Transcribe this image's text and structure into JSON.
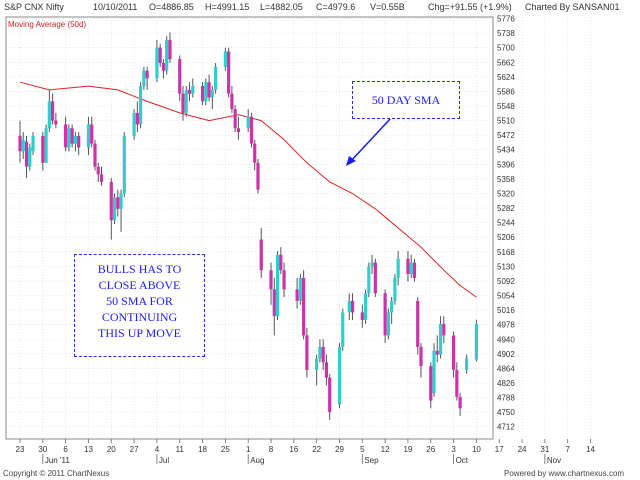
{
  "header": {
    "symbol": "S&P CNX Nifty",
    "date": "10/10/2011",
    "open": "O=4886.85",
    "high": "H=4991.15",
    "low": "L=4882.05",
    "close": "C=4979.6",
    "volume": "V=0.55B",
    "change": "Chg=+91.55 (+1.9%)",
    "charted_by": "Charted By SANSAN01"
  },
  "indicator_label": "Moving Average (50d)",
  "annotations": {
    "sma": "50 DAY SMA",
    "bulls": [
      "BULLS HAS TO",
      "CLOSE ABOVE",
      "50 SMA FOR",
      "CONTINUING",
      "THIS UP MOVE"
    ]
  },
  "footer": {
    "copyright": "Copyright © 2011 ChartNexus",
    "powered": "Powered by www.chartnexus.com"
  },
  "colors": {
    "up": "#33cccc",
    "down": "#cc33aa",
    "sma": "#dd2222",
    "annotation": "#1a1aff",
    "grid": "#d8d8d8"
  },
  "chart_data": {
    "type": "candlestick",
    "ylim": [
      4680,
      5780
    ],
    "y_ticks": [
      5776,
      5738,
      5700,
      5662,
      5624,
      5586,
      5548,
      5510,
      5472,
      5434,
      5396,
      5358,
      5320,
      5282,
      5244,
      5206,
      5168,
      5130,
      5092,
      5054,
      5016,
      4978,
      4940,
      4902,
      4864,
      4826,
      4788,
      4750,
      4712
    ],
    "x_tick_labels": [
      "23",
      "30",
      "6",
      "13",
      "20",
      "27",
      "4",
      "11",
      "18",
      "25",
      "1",
      "8",
      "16",
      "22",
      "29",
      "5",
      "12",
      "19",
      "26",
      "3",
      "10",
      "17",
      "24",
      "31",
      "7",
      "14"
    ],
    "month_labels": [
      {
        "label": "Jun '11",
        "at": "30"
      },
      {
        "label": "Jul",
        "at": "4"
      },
      {
        "label": "Aug",
        "at": "1"
      },
      {
        "label": "Sep",
        "at": "5"
      },
      {
        "label": "Oct",
        "at": "3"
      },
      {
        "label": "Nov",
        "at": "31"
      }
    ],
    "candles": [
      {
        "d": "2011-05-23",
        "o": 5470,
        "h": 5510,
        "l": 5400,
        "c": 5430
      },
      {
        "d": "2011-05-24",
        "o": 5430,
        "h": 5480,
        "l": 5410,
        "c": 5460
      },
      {
        "d": "2011-05-25",
        "o": 5455,
        "h": 5470,
        "l": 5360,
        "c": 5390
      },
      {
        "d": "2011-05-26",
        "o": 5390,
        "h": 5450,
        "l": 5380,
        "c": 5440
      },
      {
        "d": "2011-05-27",
        "o": 5430,
        "h": 5480,
        "l": 5420,
        "c": 5470
      },
      {
        "d": "2011-05-30",
        "o": 5470,
        "h": 5480,
        "l": 5380,
        "c": 5400
      },
      {
        "d": "2011-05-31",
        "o": 5400,
        "h": 5500,
        "l": 5400,
        "c": 5490
      },
      {
        "d": "2011-06-01",
        "o": 5490,
        "h": 5590,
        "l": 5480,
        "c": 5560
      },
      {
        "d": "2011-06-02",
        "o": 5560,
        "h": 5580,
        "l": 5500,
        "c": 5510
      },
      {
        "d": "2011-06-03",
        "o": 5510,
        "h": 5530,
        "l": 5490,
        "c": 5500
      },
      {
        "d": "2011-06-06",
        "o": 5500,
        "h": 5520,
        "l": 5430,
        "c": 5440
      },
      {
        "d": "2011-06-07",
        "o": 5440,
        "h": 5500,
        "l": 5430,
        "c": 5490
      },
      {
        "d": "2011-06-08",
        "o": 5490,
        "h": 5500,
        "l": 5440,
        "c": 5450
      },
      {
        "d": "2011-06-09",
        "o": 5450,
        "h": 5480,
        "l": 5430,
        "c": 5470
      },
      {
        "d": "2011-06-10",
        "o": 5470,
        "h": 5480,
        "l": 5420,
        "c": 5440
      },
      {
        "d": "2011-06-13",
        "o": 5440,
        "h": 5520,
        "l": 5420,
        "c": 5500
      },
      {
        "d": "2011-06-14",
        "o": 5500,
        "h": 5520,
        "l": 5440,
        "c": 5450
      },
      {
        "d": "2011-06-15",
        "o": 5450,
        "h": 5460,
        "l": 5380,
        "c": 5390
      },
      {
        "d": "2011-06-16",
        "o": 5390,
        "h": 5400,
        "l": 5350,
        "c": 5370
      },
      {
        "d": "2011-06-17",
        "o": 5370,
        "h": 5390,
        "l": 5340,
        "c": 5350
      },
      {
        "d": "2011-06-20",
        "o": 5350,
        "h": 5360,
        "l": 5200,
        "c": 5250
      },
      {
        "d": "2011-06-21",
        "o": 5250,
        "h": 5320,
        "l": 5240,
        "c": 5310
      },
      {
        "d": "2011-06-22",
        "o": 5310,
        "h": 5330,
        "l": 5260,
        "c": 5280
      },
      {
        "d": "2011-06-23",
        "o": 5280,
        "h": 5330,
        "l": 5220,
        "c": 5320
      },
      {
        "d": "2011-06-24",
        "o": 5320,
        "h": 5480,
        "l": 5310,
        "c": 5470
      },
      {
        "d": "2011-06-27",
        "o": 5470,
        "h": 5540,
        "l": 5460,
        "c": 5530
      },
      {
        "d": "2011-06-28",
        "o": 5530,
        "h": 5560,
        "l": 5480,
        "c": 5500
      },
      {
        "d": "2011-06-29",
        "o": 5500,
        "h": 5610,
        "l": 5490,
        "c": 5600
      },
      {
        "d": "2011-06-30",
        "o": 5600,
        "h": 5650,
        "l": 5590,
        "c": 5640
      },
      {
        "d": "2011-07-01",
        "o": 5640,
        "h": 5650,
        "l": 5590,
        "c": 5620
      },
      {
        "d": "2011-07-04",
        "o": 5620,
        "h": 5720,
        "l": 5610,
        "c": 5700
      },
      {
        "d": "2011-07-05",
        "o": 5700,
        "h": 5710,
        "l": 5650,
        "c": 5660
      },
      {
        "d": "2011-07-06",
        "o": 5660,
        "h": 5670,
        "l": 5620,
        "c": 5640
      },
      {
        "d": "2011-07-07",
        "o": 5640,
        "h": 5730,
        "l": 5630,
        "c": 5720
      },
      {
        "d": "2011-07-08",
        "o": 5720,
        "h": 5740,
        "l": 5660,
        "c": 5670
      },
      {
        "d": "2011-07-11",
        "o": 5670,
        "h": 5680,
        "l": 5560,
        "c": 5580
      },
      {
        "d": "2011-07-12",
        "o": 5580,
        "h": 5600,
        "l": 5510,
        "c": 5530
      },
      {
        "d": "2011-07-13",
        "o": 5530,
        "h": 5600,
        "l": 5520,
        "c": 5590
      },
      {
        "d": "2011-07-14",
        "o": 5590,
        "h": 5610,
        "l": 5560,
        "c": 5580
      },
      {
        "d": "2011-07-15",
        "o": 5580,
        "h": 5620,
        "l": 5570,
        "c": 5600
      },
      {
        "d": "2011-07-18",
        "o": 5600,
        "h": 5610,
        "l": 5550,
        "c": 5560
      },
      {
        "d": "2011-07-19",
        "o": 5560,
        "h": 5620,
        "l": 5550,
        "c": 5610
      },
      {
        "d": "2011-07-20",
        "o": 5610,
        "h": 5630,
        "l": 5560,
        "c": 5570
      },
      {
        "d": "2011-07-21",
        "o": 5570,
        "h": 5600,
        "l": 5540,
        "c": 5590
      },
      {
        "d": "2011-07-22",
        "o": 5590,
        "h": 5660,
        "l": 5580,
        "c": 5650
      },
      {
        "d": "2011-07-25",
        "o": 5650,
        "h": 5700,
        "l": 5640,
        "c": 5690
      },
      {
        "d": "2011-07-26",
        "o": 5690,
        "h": 5700,
        "l": 5570,
        "c": 5580
      },
      {
        "d": "2011-07-27",
        "o": 5580,
        "h": 5600,
        "l": 5530,
        "c": 5540
      },
      {
        "d": "2011-07-28",
        "o": 5540,
        "h": 5550,
        "l": 5480,
        "c": 5490
      },
      {
        "d": "2011-07-29",
        "o": 5490,
        "h": 5520,
        "l": 5460,
        "c": 5480
      },
      {
        "d": "2011-08-01",
        "o": 5490,
        "h": 5540,
        "l": 5480,
        "c": 5520
      },
      {
        "d": "2011-08-02",
        "o": 5520,
        "h": 5530,
        "l": 5440,
        "c": 5450
      },
      {
        "d": "2011-08-03",
        "o": 5450,
        "h": 5460,
        "l": 5380,
        "c": 5400
      },
      {
        "d": "2011-08-04",
        "o": 5400,
        "h": 5410,
        "l": 5320,
        "c": 5330
      },
      {
        "d": "2011-08-05",
        "o": 5200,
        "h": 5230,
        "l": 5100,
        "c": 5120
      },
      {
        "d": "2011-08-08",
        "o": 5120,
        "h": 5140,
        "l": 5030,
        "c": 5070
      },
      {
        "d": "2011-08-09",
        "o": 5070,
        "h": 5100,
        "l": 4950,
        "c": 5000
      },
      {
        "d": "2011-08-10",
        "o": 5000,
        "h": 5170,
        "l": 4990,
        "c": 5160
      },
      {
        "d": "2011-08-11",
        "o": 5160,
        "h": 5180,
        "l": 5110,
        "c": 5120
      },
      {
        "d": "2011-08-12",
        "o": 5120,
        "h": 5140,
        "l": 5050,
        "c": 5070
      },
      {
        "d": "2011-08-16",
        "o": 5070,
        "h": 5100,
        "l": 5020,
        "c": 5040
      },
      {
        "d": "2011-08-17",
        "o": 5040,
        "h": 5110,
        "l": 5030,
        "c": 5100
      },
      {
        "d": "2011-08-18",
        "o": 5100,
        "h": 5120,
        "l": 4940,
        "c": 4950
      },
      {
        "d": "2011-08-19",
        "o": 4950,
        "h": 4970,
        "l": 4840,
        "c": 4860
      },
      {
        "d": "2011-08-22",
        "o": 4860,
        "h": 4900,
        "l": 4820,
        "c": 4890
      },
      {
        "d": "2011-08-23",
        "o": 4890,
        "h": 4940,
        "l": 4880,
        "c": 4920
      },
      {
        "d": "2011-08-24",
        "o": 4920,
        "h": 4940,
        "l": 4860,
        "c": 4880
      },
      {
        "d": "2011-08-25",
        "o": 4880,
        "h": 4900,
        "l": 4820,
        "c": 4840
      },
      {
        "d": "2011-08-26",
        "o": 4840,
        "h": 4850,
        "l": 4730,
        "c": 4750
      },
      {
        "d": "2011-08-29",
        "o": 4770,
        "h": 4930,
        "l": 4760,
        "c": 4920
      },
      {
        "d": "2011-08-30",
        "o": 4920,
        "h": 5020,
        "l": 4910,
        "c": 5010
      },
      {
        "d": "2011-09-01",
        "o": 5010,
        "h": 5060,
        "l": 4990,
        "c": 5040
      },
      {
        "d": "2011-09-02",
        "o": 5040,
        "h": 5060,
        "l": 4990,
        "c": 5010
      },
      {
        "d": "2011-09-05",
        "o": 5010,
        "h": 5030,
        "l": 4970,
        "c": 4990
      },
      {
        "d": "2011-09-06",
        "o": 4990,
        "h": 5070,
        "l": 4980,
        "c": 5060
      },
      {
        "d": "2011-09-07",
        "o": 5060,
        "h": 5140,
        "l": 5050,
        "c": 5130
      },
      {
        "d": "2011-09-08",
        "o": 5130,
        "h": 5160,
        "l": 5110,
        "c": 5140
      },
      {
        "d": "2011-09-09",
        "o": 5140,
        "h": 5150,
        "l": 5050,
        "c": 5060
      },
      {
        "d": "2011-09-12",
        "o": 5060,
        "h": 5070,
        "l": 4930,
        "c": 4950
      },
      {
        "d": "2011-09-13",
        "o": 4950,
        "h": 5020,
        "l": 4940,
        "c": 5010
      },
      {
        "d": "2011-09-14",
        "o": 5010,
        "h": 5050,
        "l": 4980,
        "c": 5040
      },
      {
        "d": "2011-09-15",
        "o": 5040,
        "h": 5110,
        "l": 5030,
        "c": 5100
      },
      {
        "d": "2011-09-16",
        "o": 5100,
        "h": 5170,
        "l": 5080,
        "c": 5150
      },
      {
        "d": "2011-09-19",
        "o": 5150,
        "h": 5170,
        "l": 5090,
        "c": 5110
      },
      {
        "d": "2011-09-20",
        "o": 5110,
        "h": 5160,
        "l": 5100,
        "c": 5140
      },
      {
        "d": "2011-09-21",
        "o": 5140,
        "h": 5150,
        "l": 5090,
        "c": 5100
      },
      {
        "d": "2011-09-22",
        "o": 5040,
        "h": 5050,
        "l": 4900,
        "c": 4920
      },
      {
        "d": "2011-09-23",
        "o": 4920,
        "h": 4930,
        "l": 4840,
        "c": 4870
      },
      {
        "d": "2011-09-26",
        "o": 4870,
        "h": 4880,
        "l": 4760,
        "c": 4780
      },
      {
        "d": "2011-09-27",
        "o": 4800,
        "h": 4930,
        "l": 4790,
        "c": 4910
      },
      {
        "d": "2011-09-28",
        "o": 4910,
        "h": 4950,
        "l": 4880,
        "c": 4900
      },
      {
        "d": "2011-09-29",
        "o": 4900,
        "h": 5000,
        "l": 4890,
        "c": 4980
      },
      {
        "d": "2011-09-30",
        "o": 4980,
        "h": 5000,
        "l": 4930,
        "c": 4950
      },
      {
        "d": "2011-10-03",
        "o": 4950,
        "h": 4960,
        "l": 4840,
        "c": 4860
      },
      {
        "d": "2011-10-04",
        "o": 4860,
        "h": 4880,
        "l": 4780,
        "c": 4790
      },
      {
        "d": "2011-10-05",
        "o": 4790,
        "h": 4800,
        "l": 4740,
        "c": 4760
      },
      {
        "d": "2011-10-07",
        "o": 4860,
        "h": 4900,
        "l": 4850,
        "c": 4890
      },
      {
        "d": "2011-10-10",
        "o": 4886.85,
        "h": 4991.15,
        "l": 4882.05,
        "c": 4979.6
      }
    ],
    "sma50": [
      {
        "d": "2011-05-23",
        "v": 5610
      },
      {
        "d": "2011-06-01",
        "v": 5590
      },
      {
        "d": "2011-06-13",
        "v": 5600
      },
      {
        "d": "2011-06-22",
        "v": 5590
      },
      {
        "d": "2011-07-01",
        "v": 5560
      },
      {
        "d": "2011-07-11",
        "v": 5530
      },
      {
        "d": "2011-07-20",
        "v": 5510
      },
      {
        "d": "2011-07-29",
        "v": 5525
      },
      {
        "d": "2011-08-05",
        "v": 5510
      },
      {
        "d": "2011-08-12",
        "v": 5460
      },
      {
        "d": "2011-08-19",
        "v": 5400
      },
      {
        "d": "2011-08-26",
        "v": 5350
      },
      {
        "d": "2011-09-02",
        "v": 5320
      },
      {
        "d": "2011-09-09",
        "v": 5280
      },
      {
        "d": "2011-09-16",
        "v": 5230
      },
      {
        "d": "2011-09-23",
        "v": 5180
      },
      {
        "d": "2011-09-30",
        "v": 5120
      },
      {
        "d": "2011-10-05",
        "v": 5080
      },
      {
        "d": "2011-10-10",
        "v": 5050
      }
    ]
  }
}
